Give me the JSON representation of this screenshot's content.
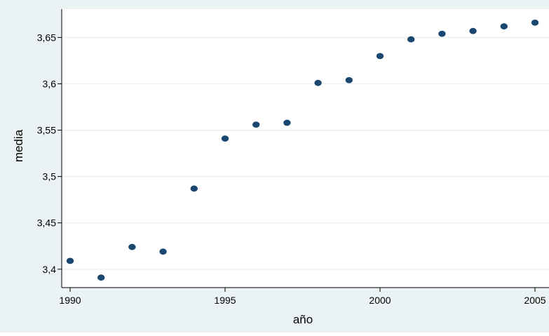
{
  "chart_data": {
    "type": "scatter",
    "title": "",
    "xlabel": "año",
    "ylabel": "media",
    "xlim": [
      1990,
      2005
    ],
    "ylim": [
      3.39,
      3.67
    ],
    "xticks": [
      1990,
      1995,
      2000,
      2005
    ],
    "xtick_labels": [
      "1990",
      "1995",
      "2000",
      "2005"
    ],
    "yticks": [
      3.4,
      3.45,
      3.5,
      3.55,
      3.6,
      3.65
    ],
    "ytick_labels": [
      "3,4",
      "3,45",
      "3,5",
      "3,55",
      "3,6",
      "3,65"
    ],
    "grid": true,
    "legend": "none",
    "colors": {
      "outer_background": "#eaf2f3",
      "plot_background": "#ffffff",
      "gridline": "#eaf2f3",
      "marker": "#1a476f",
      "axis": "#000000"
    },
    "x": [
      1990,
      1991,
      1992,
      1993,
      1994,
      1995,
      1996,
      1997,
      1998,
      1999,
      2000,
      2001,
      2002,
      2003,
      2004,
      2005
    ],
    "y": [
      3.409,
      3.391,
      3.424,
      3.419,
      3.487,
      3.541,
      3.556,
      3.558,
      3.601,
      3.604,
      3.63,
      3.648,
      3.654,
      3.657,
      3.662,
      3.666
    ]
  }
}
